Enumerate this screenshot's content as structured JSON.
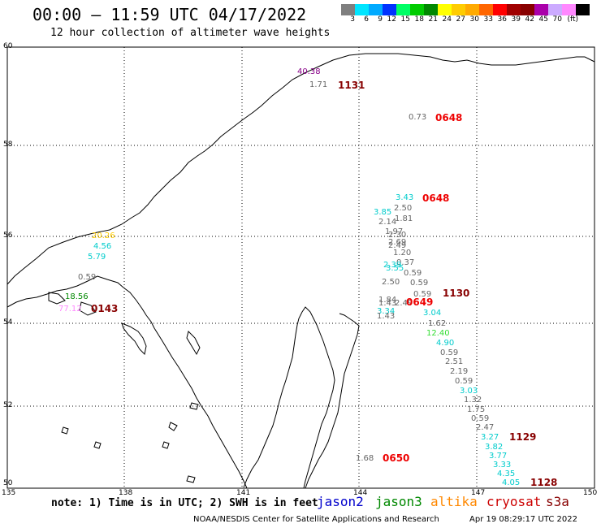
{
  "header": {
    "title": "00:00 – 11:59 UTC 04/17/2022",
    "subtitle": "12 hour collection of altimeter wave heights"
  },
  "legend": {
    "unit": "(ft)",
    "labels": [
      "3",
      "6",
      "9",
      "12",
      "15",
      "18",
      "21",
      "24",
      "27",
      "30",
      "33",
      "36",
      "39",
      "42",
      "45",
      "70"
    ],
    "colors": [
      "#7f7f7f",
      "#00e5ff",
      "#00aaff",
      "#0033ff",
      "#00ff66",
      "#00cc00",
      "#008800",
      "#ffff00",
      "#ffcc00",
      "#ffaa00",
      "#ff6600",
      "#ff0000",
      "#a00000",
      "#880000",
      "#aa00aa",
      "#ccaaff",
      "#ff88ff",
      "#000000"
    ]
  },
  "axes": {
    "lat_labels": [
      "60",
      "58",
      "56",
      "54",
      "52",
      "50"
    ],
    "lon_labels": [
      "135",
      "138",
      "141",
      "144",
      "147",
      "150"
    ]
  },
  "note": "note: 1) Time is in UTC; 2) SWH is in feet",
  "satellites": [
    {
      "name": "jason2",
      "color": "#0000cc"
    },
    {
      "name": "jason3",
      "color": "#008800"
    },
    {
      "name": "altika",
      "color": "#ff8800"
    },
    {
      "name": "cryosat",
      "color": "#cc0000"
    },
    {
      "name": "s3a",
      "color": "#880000"
    }
  ],
  "footer": {
    "source": "NOAA/NESDIS Center for Satellite Applications and Research",
    "timestamp": "Apr 19 08:29:17 UTC 2022"
  },
  "observations": [
    {
      "text": "40.38",
      "color": "#880088"
    },
    {
      "text": "1.71",
      "color": "#666666"
    },
    {
      "text": "0.73",
      "color": "#666666"
    },
    {
      "text": "3.43",
      "color": "#00cccc"
    },
    {
      "text": "2.50",
      "color": "#666666"
    },
    {
      "text": "3.85",
      "color": "#00cccc"
    },
    {
      "text": "1.81",
      "color": "#666666"
    },
    {
      "text": "2.14",
      "color": "#666666"
    },
    {
      "text": "1.97",
      "color": "#666666"
    },
    {
      "text": "2.30",
      "color": "#666666"
    },
    {
      "text": "2.69",
      "color": "#666666"
    },
    {
      "text": "2.49",
      "color": "#666666"
    },
    {
      "text": "1.20",
      "color": "#666666"
    },
    {
      "text": "0.37",
      "color": "#666666"
    },
    {
      "text": "2.39",
      "color": "#00cccc"
    },
    {
      "text": "3.55",
      "color": "#00cccc"
    },
    {
      "text": "0.59",
      "color": "#666666"
    },
    {
      "text": "2.50",
      "color": "#666666"
    },
    {
      "text": "0.59",
      "color": "#666666"
    },
    {
      "text": "1.84",
      "color": "#666666"
    },
    {
      "text": "0.59",
      "color": "#666666"
    },
    {
      "text": "1.43",
      "color": "#666666"
    },
    {
      "text": "2.49",
      "color": "#666666"
    },
    {
      "text": "3.34",
      "color": "#00cccc"
    },
    {
      "text": "1.43",
      "color": "#666666"
    },
    {
      "text": "3.04",
      "color": "#00cccc"
    },
    {
      "text": "1.62",
      "color": "#666666"
    },
    {
      "text": "12.40",
      "color": "#33dd33"
    },
    {
      "text": "4.90",
      "color": "#00cccc"
    },
    {
      "text": "0.59",
      "color": "#666666"
    },
    {
      "text": "2.51",
      "color": "#666666"
    },
    {
      "text": "2.19",
      "color": "#666666"
    },
    {
      "text": "0.59",
      "color": "#666666"
    },
    {
      "text": "3.03",
      "color": "#00cccc"
    },
    {
      "text": "1.32",
      "color": "#666666"
    },
    {
      "text": "1.75",
      "color": "#666666"
    },
    {
      "text": "0.59",
      "color": "#666666"
    },
    {
      "text": "2.47",
      "color": "#666666"
    },
    {
      "text": "3.27",
      "color": "#00cccc"
    },
    {
      "text": "3.82",
      "color": "#00cccc"
    },
    {
      "text": "3.77",
      "color": "#00cccc"
    },
    {
      "text": "3.33",
      "color": "#00cccc"
    },
    {
      "text": "4.35",
      "color": "#00cccc"
    },
    {
      "text": "4.05",
      "color": "#00cccc"
    },
    {
      "text": "1.68",
      "color": "#666666"
    },
    {
      "text": "20.26",
      "color": "#ffcc00"
    },
    {
      "text": "4.56",
      "color": "#00cccc"
    },
    {
      "text": "5.79",
      "color": "#00cccc"
    },
    {
      "text": "0.59",
      "color": "#666666"
    },
    {
      "text": "18.56",
      "color": "#008800"
    },
    {
      "text": "77.12",
      "color": "#ff88ff"
    }
  ],
  "time_labels": [
    {
      "text": "1131",
      "color": "#880000"
    },
    {
      "text": "0648",
      "color": "#ee0000"
    },
    {
      "text": "0648",
      "color": "#ee0000"
    },
    {
      "text": "1130",
      "color": "#880000"
    },
    {
      "text": "0649",
      "color": "#ee0000"
    },
    {
      "text": "0143",
      "color": "#880000"
    },
    {
      "text": "1129",
      "color": "#880000"
    },
    {
      "text": "1128",
      "color": "#880000"
    },
    {
      "text": "0650",
      "color": "#ee0000"
    }
  ]
}
